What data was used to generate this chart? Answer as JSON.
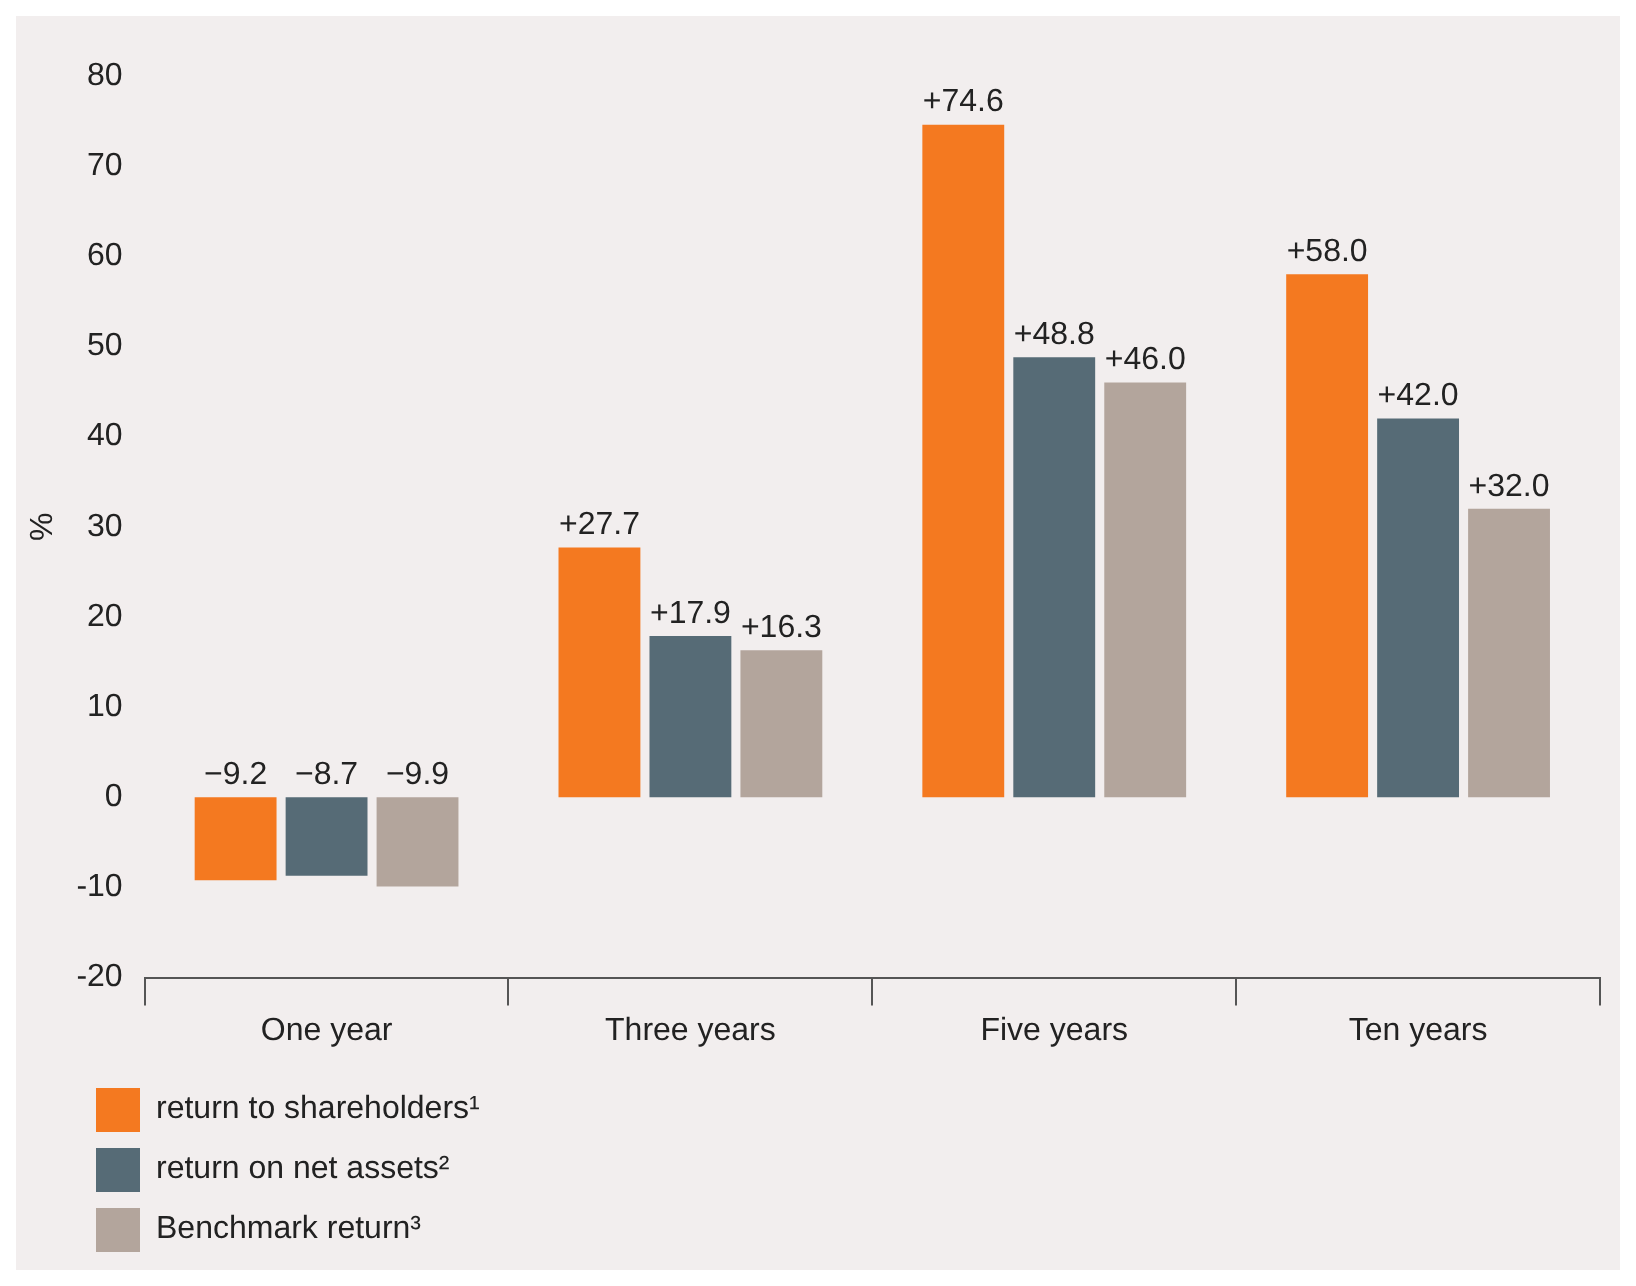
{
  "chart_data": {
    "type": "bar",
    "ylabel": "%",
    "categories": [
      "One year",
      "Three years",
      "Five years",
      "Ten years"
    ],
    "series": [
      {
        "name": "return to shareholders¹",
        "color": "#f47920",
        "values": [
          -9.2,
          27.7,
          74.6,
          58.0
        ],
        "value_labels": [
          "−9.2",
          "+27.7",
          "+74.6",
          "+58.0"
        ]
      },
      {
        "name": "return on net assets²",
        "color": "#566b76",
        "values": [
          -8.7,
          17.9,
          48.8,
          42.0
        ],
        "value_labels": [
          "−8.7",
          "+17.9",
          "+48.8",
          "+42.0"
        ]
      },
      {
        "name": "Benchmark return³",
        "color": "#b3a59c",
        "values": [
          -9.9,
          16.3,
          46.0,
          32.0
        ],
        "value_labels": [
          "−9.9",
          "+16.3",
          "+46.0",
          "+32.0"
        ]
      }
    ],
    "ylim": [
      -20,
      80
    ],
    "yticks": [
      -20,
      -10,
      0,
      10,
      20,
      30,
      40,
      50,
      60,
      70,
      80
    ],
    "grid": false,
    "legend": "bottom"
  }
}
